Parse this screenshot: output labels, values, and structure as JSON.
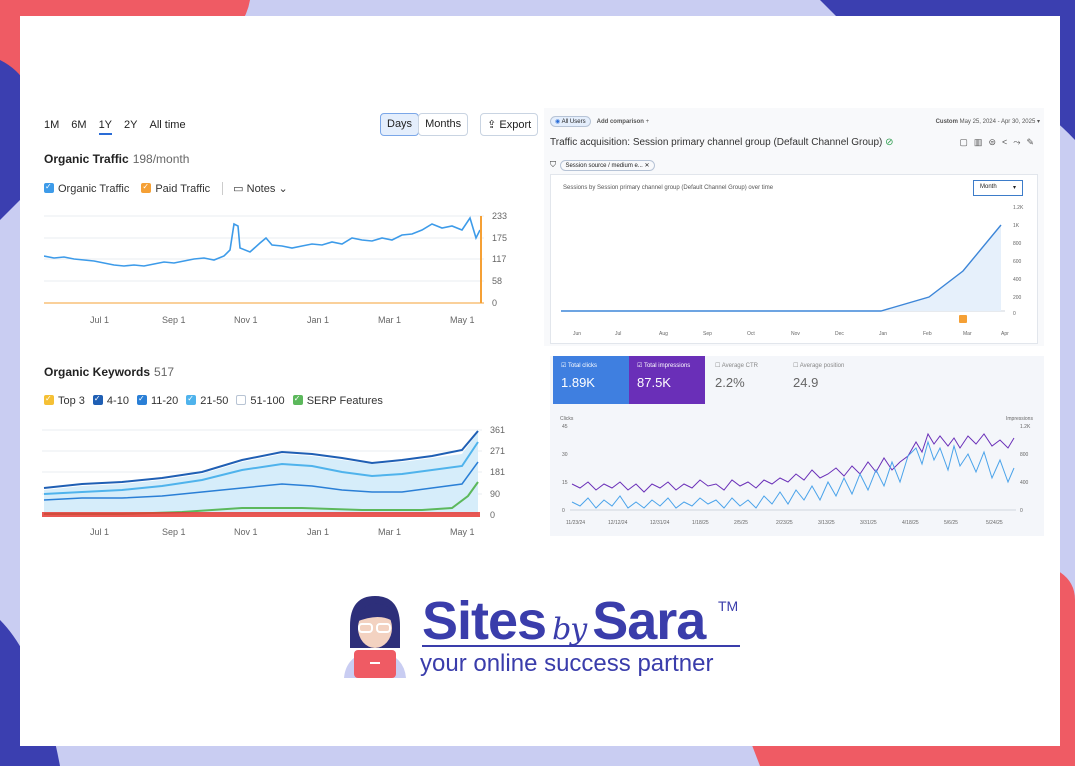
{
  "semrush": {
    "ranges": [
      "1M",
      "6M",
      "1Y",
      "2Y",
      "All time"
    ],
    "active_range": "1Y",
    "days_label": "Days",
    "months_label": "Months",
    "export_label": "Export",
    "organic_traffic": {
      "title": "Organic Traffic",
      "meta": "198/month",
      "legend": [
        "Organic Traffic",
        "Paid Traffic",
        "Notes"
      ],
      "y_ticks": [
        "233",
        "175",
        "117",
        "58",
        "0"
      ],
      "x_ticks": [
        "Jul 1",
        "Sep 1",
        "Nov 1",
        "Jan 1",
        "Mar 1",
        "May 1"
      ]
    },
    "organic_keywords": {
      "title": "Organic Keywords",
      "meta": "517",
      "legend": [
        "Top 3",
        "4-10",
        "11-20",
        "21-50",
        "51-100",
        "SERP Features"
      ],
      "y_ticks": [
        "361",
        "271",
        "181",
        "90",
        "0"
      ],
      "x_ticks": [
        "Jul 1",
        "Sep 1",
        "Nov 1",
        "Jan 1",
        "Mar 1",
        "May 1"
      ]
    }
  },
  "ga": {
    "all_users": "All Users",
    "add_comparison": "Add comparison",
    "date_label": "Custom",
    "date_range": "May 25, 2024 - Apr 30, 2025",
    "title": "Traffic acquisition: Session primary channel group (Default Channel Group)",
    "filter": "Session source / medium e...",
    "chart_title": "Sessions by Session primary channel group (Default Channel Group) over time",
    "period_select": "Month",
    "y_ticks": [
      "1.2K",
      "1K",
      "800",
      "600",
      "400",
      "200",
      "0"
    ],
    "x_ticks": [
      "Jun",
      "Jul",
      "Aug",
      "Sep",
      "Oct",
      "Nov",
      "Dec",
      "Jan",
      "Feb",
      "Mar",
      "Apr"
    ]
  },
  "gsc": {
    "metrics": [
      {
        "label": "Total clicks",
        "value": "1.89K"
      },
      {
        "label": "Total impressions",
        "value": "87.5K"
      },
      {
        "label": "Average CTR",
        "value": "2.2%"
      },
      {
        "label": "Average position",
        "value": "24.9"
      }
    ],
    "left_axis_label": "Clicks",
    "right_axis_label": "Impressions",
    "left_ticks": [
      "45",
      "30",
      "15",
      "0"
    ],
    "right_ticks": [
      "1.2K",
      "800",
      "400",
      "0"
    ],
    "x_ticks": [
      "11/23/24",
      "12/12/24",
      "12/31/24",
      "1/18/25",
      "2/5/25",
      "2/23/25",
      "3/13/25",
      "3/31/25",
      "4/18/25",
      "5/6/25",
      "5/24/25"
    ]
  },
  "brand": {
    "name_part1": "Sites",
    "name_by": "by",
    "name_part2": "Sara",
    "tm": "TM",
    "tagline": "your online success partner"
  },
  "colors": {
    "blue": "#3d9be9",
    "orange": "#f5a035",
    "navy": "#1f5fb4",
    "green": "#5cb85c",
    "brand": "#3a3dab",
    "purple": "#6a2fb8"
  }
}
